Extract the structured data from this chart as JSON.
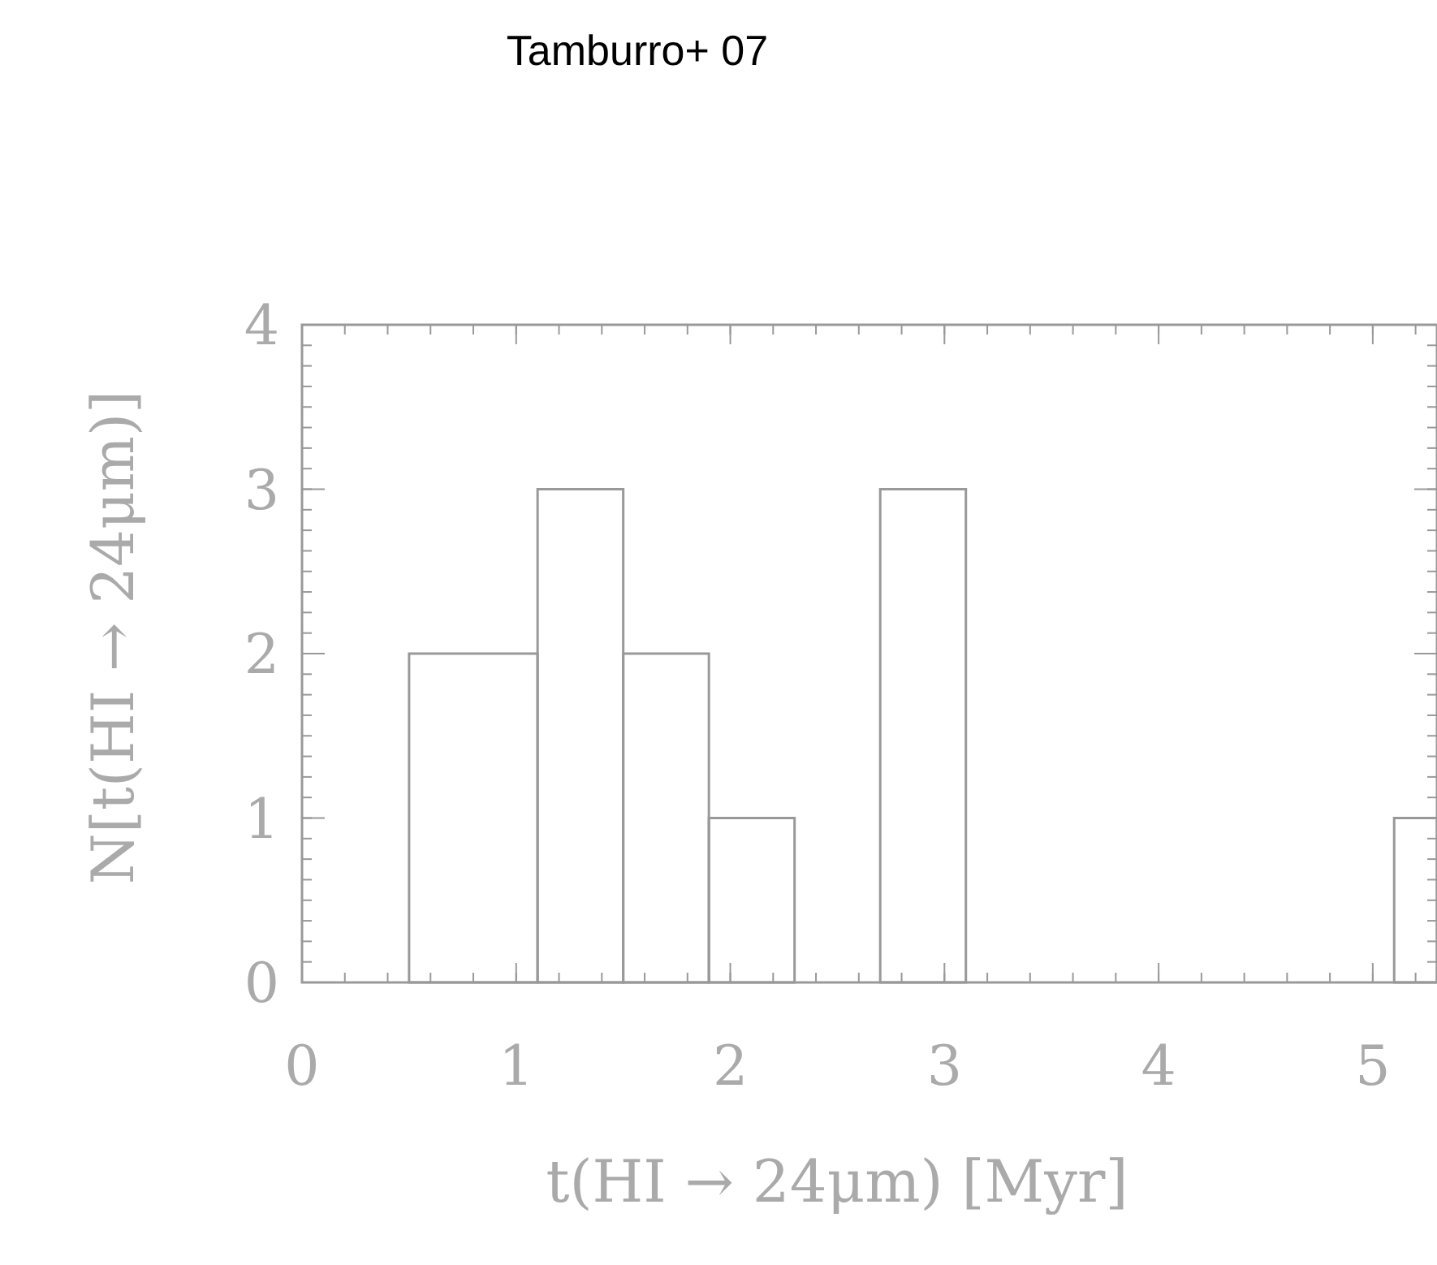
{
  "chart_data": {
    "type": "histogram",
    "title": "Tamburro+ 07",
    "xlabel": "t(HI → 24μm) [Myr]",
    "ylabel": "N[t(HI → 24μm)]",
    "bins": [
      0.5,
      1.1,
      1.5,
      1.9,
      2.3,
      2.7,
      3.1,
      5.1,
      5.3
    ],
    "values": [
      2,
      3,
      2,
      1,
      0,
      3,
      0,
      1
    ],
    "color": "#999999",
    "xlim": [
      0,
      5.3
    ],
    "ylim": [
      0,
      4
    ],
    "xticks": [
      0,
      1,
      2,
      3,
      4,
      5
    ],
    "yticks": [
      0,
      1,
      2,
      3,
      4
    ],
    "grid": false
  }
}
